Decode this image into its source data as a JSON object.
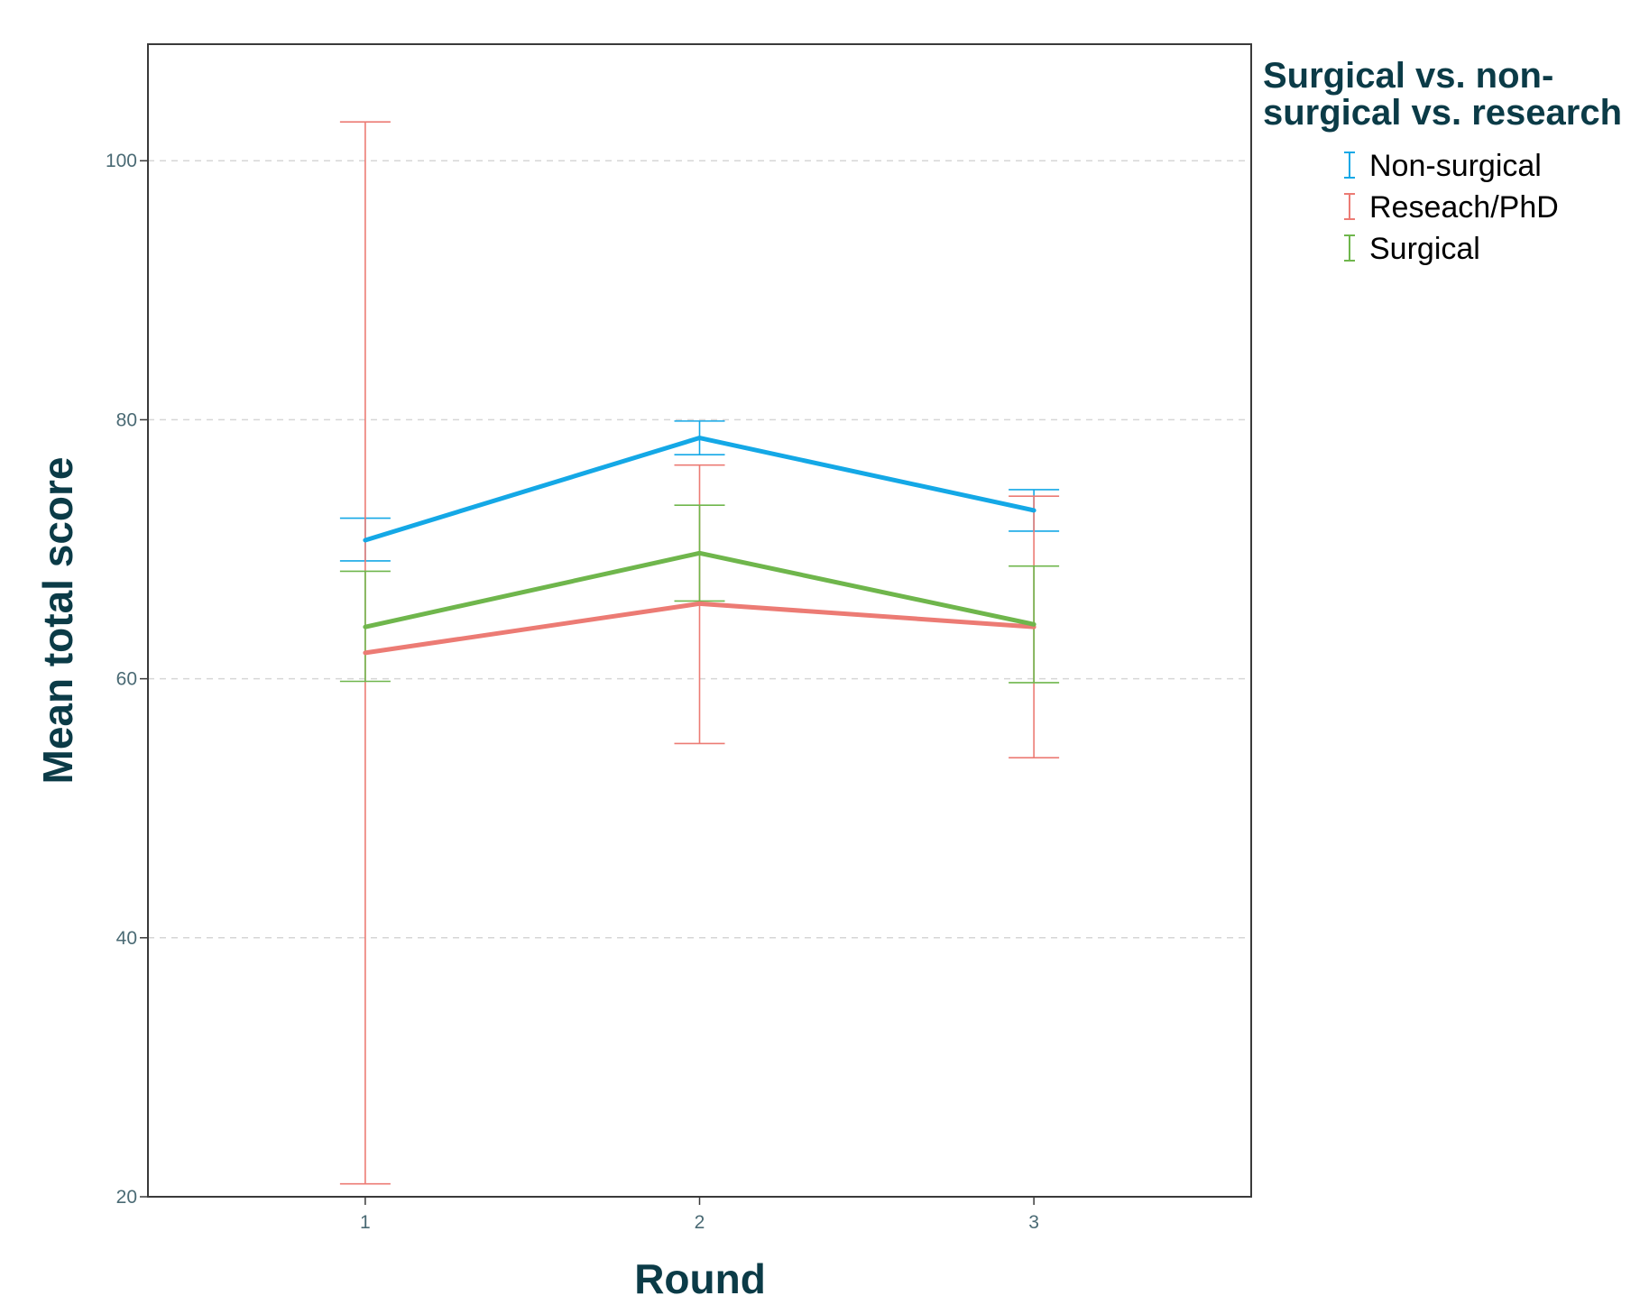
{
  "chart_data": {
    "type": "line",
    "x": [
      1,
      2,
      3
    ],
    "xlabel": "Round",
    "ylabel": "Mean total score",
    "xlim": [
      0.35,
      3.65
    ],
    "ylim": [
      20,
      109
    ],
    "yticks": [
      20,
      40,
      60,
      80,
      100
    ],
    "grid": "horizontal-dashed",
    "error_bars": true,
    "legend": {
      "title_lines": [
        "Surgical vs. non-",
        "surgical vs. research"
      ],
      "placement": "right"
    },
    "series": [
      {
        "name": "Non-surgical",
        "color": "#14a8e6",
        "values": [
          70.7,
          78.6,
          73.0
        ],
        "lower": [
          69.1,
          77.3,
          71.4
        ],
        "upper": [
          72.4,
          79.9,
          74.6
        ]
      },
      {
        "name": "Reseach/PhD",
        "color": "#ec7b74",
        "values": [
          62.0,
          65.8,
          64.0
        ],
        "lower": [
          21.0,
          55.0,
          53.9
        ],
        "upper": [
          103.0,
          76.5,
          74.1
        ]
      },
      {
        "name": "Surgical",
        "color": "#6fb64c",
        "values": [
          64.0,
          69.7,
          64.2
        ],
        "lower": [
          59.8,
          66.0,
          59.7
        ],
        "upper": [
          68.3,
          73.4,
          68.7
        ]
      }
    ]
  }
}
